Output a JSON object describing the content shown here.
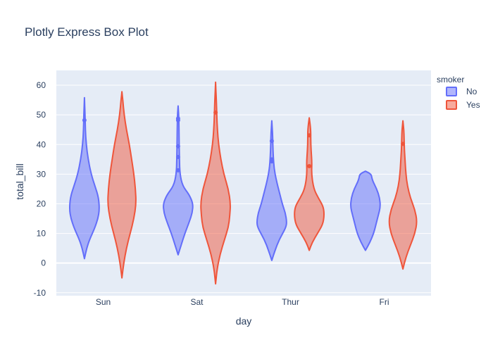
{
  "chart_data": {
    "type": "violin",
    "title": "Plotly Express Box Plot",
    "xlabel": "day",
    "ylabel": "total_bill",
    "categories": [
      "Sun",
      "Sat",
      "Thur",
      "Fri"
    ],
    "ylim": [
      -11,
      65
    ],
    "yticks": [
      -10,
      0,
      10,
      20,
      30,
      40,
      50,
      60
    ],
    "grid": true,
    "legend": {
      "title": "smoker",
      "position": "top-right"
    },
    "series": [
      {
        "name": "No",
        "color": "#636efa",
        "violins": [
          {
            "category": "Sun",
            "min": 1.5,
            "max": 55.8,
            "profile": [
              [
                1.5,
                0
              ],
              [
                5,
                0.15
              ],
              [
                8,
                0.35
              ],
              [
                12,
                0.7
              ],
              [
                15,
                0.9
              ],
              [
                18,
                1
              ],
              [
                22,
                0.95
              ],
              [
                26,
                0.7
              ],
              [
                30,
                0.45
              ],
              [
                35,
                0.25
              ],
              [
                40,
                0.12
              ],
              [
                45,
                0.06
              ],
              [
                50,
                0.04
              ],
              [
                55.8,
                0
              ]
            ],
            "outliers": [
              48.2
            ]
          },
          {
            "category": "Sat",
            "min": 2.8,
            "max": 53.0,
            "profile": [
              [
                2.8,
                0
              ],
              [
                6,
                0.2
              ],
              [
                10,
                0.45
              ],
              [
                14,
                0.75
              ],
              [
                17,
                0.95
              ],
              [
                20,
                1
              ],
              [
                23,
                0.75
              ],
              [
                26,
                0.3
              ],
              [
                30,
                0.12
              ],
              [
                35,
                0.09
              ],
              [
                40,
                0.07
              ],
              [
                45,
                0.06
              ],
              [
                50,
                0.04
              ],
              [
                53,
                0
              ]
            ],
            "outliers": [
              31.3,
              35.8,
              39.4,
              48.2,
              48.8
            ]
          },
          {
            "category": "Thur",
            "min": 0.9,
            "max": 48.0,
            "profile": [
              [
                0.9,
                0
              ],
              [
                4,
                0.2
              ],
              [
                8,
                0.5
              ],
              [
                12,
                0.95
              ],
              [
                14,
                1
              ],
              [
                17,
                0.9
              ],
              [
                20,
                0.7
              ],
              [
                24,
                0.5
              ],
              [
                28,
                0.3
              ],
              [
                32,
                0.15
              ],
              [
                36,
                0.1
              ],
              [
                40,
                0.07
              ],
              [
                44,
                0.05
              ],
              [
                48,
                0
              ]
            ],
            "outliers": [
              34.3,
              35.0,
              41.2
            ]
          },
          {
            "category": "Fri",
            "min": 4.3,
            "max": 31.0,
            "profile": [
              [
                4.3,
                0
              ],
              [
                7,
                0.3
              ],
              [
                10,
                0.55
              ],
              [
                13,
                0.7
              ],
              [
                16,
                0.85
              ],
              [
                19,
                1
              ],
              [
                22,
                0.95
              ],
              [
                25,
                0.75
              ],
              [
                28,
                0.45
              ],
              [
                30,
                0.4
              ],
              [
                31,
                0
              ]
            ],
            "outliers": []
          }
        ]
      },
      {
        "name": "Yes",
        "color": "#ef553b",
        "violins": [
          {
            "category": "Sun",
            "min": -5.0,
            "max": 57.8,
            "profile": [
              [
                -5,
                0
              ],
              [
                0,
                0.12
              ],
              [
                5,
                0.3
              ],
              [
                10,
                0.55
              ],
              [
                15,
                0.8
              ],
              [
                20,
                0.95
              ],
              [
                25,
                0.9
              ],
              [
                30,
                0.8
              ],
              [
                35,
                0.65
              ],
              [
                40,
                0.5
              ],
              [
                45,
                0.3
              ],
              [
                50,
                0.15
              ],
              [
                55,
                0.06
              ],
              [
                57.8,
                0
              ]
            ],
            "outliers": []
          },
          {
            "category": "Sat",
            "min": -7.0,
            "max": 61.0,
            "profile": [
              [
                -7,
                0
              ],
              [
                -2,
                0.1
              ],
              [
                3,
                0.3
              ],
              [
                8,
                0.6
              ],
              [
                12,
                0.85
              ],
              [
                16,
                0.95
              ],
              [
                20,
                1
              ],
              [
                25,
                0.85
              ],
              [
                30,
                0.55
              ],
              [
                35,
                0.35
              ],
              [
                40,
                0.2
              ],
              [
                45,
                0.12
              ],
              [
                50,
                0.08
              ],
              [
                55,
                0.05
              ],
              [
                61,
                0
              ]
            ],
            "outliers": [
              50.8
            ]
          },
          {
            "category": "Thur",
            "min": 4.3,
            "max": 49.0,
            "profile": [
              [
                4.3,
                0
              ],
              [
                7,
                0.2
              ],
              [
                10,
                0.55
              ],
              [
                13,
                0.9
              ],
              [
                16,
                1
              ],
              [
                19,
                0.95
              ],
              [
                22,
                0.6
              ],
              [
                25,
                0.3
              ],
              [
                30,
                0.15
              ],
              [
                34,
                0.18
              ],
              [
                38,
                0.12
              ],
              [
                42,
                0.1
              ],
              [
                45,
                0.1
              ],
              [
                49,
                0
              ]
            ],
            "outliers": [
              32.7,
              43.1
            ]
          },
          {
            "category": "Fri",
            "min": -2.0,
            "max": 48.0,
            "profile": [
              [
                -2,
                0
              ],
              [
                2,
                0.2
              ],
              [
                6,
                0.5
              ],
              [
                10,
                0.8
              ],
              [
                14,
                0.95
              ],
              [
                18,
                0.8
              ],
              [
                22,
                0.5
              ],
              [
                26,
                0.3
              ],
              [
                30,
                0.2
              ],
              [
                34,
                0.15
              ],
              [
                38,
                0.1
              ],
              [
                42,
                0.08
              ],
              [
                45,
                0.06
              ],
              [
                48,
                0
              ]
            ],
            "outliers": [
              40.2
            ]
          }
        ]
      }
    ]
  }
}
